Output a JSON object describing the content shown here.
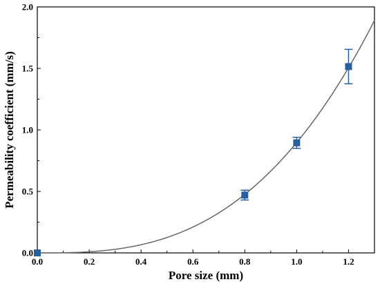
{
  "chart_data": {
    "type": "scatter",
    "title": "",
    "xlabel": "Pore size (mm)",
    "ylabel": "Permeability coefficient (mm/s)",
    "xlim": [
      0.0,
      1.3
    ],
    "ylim": [
      0.0,
      2.0
    ],
    "xticks": [
      0.0,
      0.2,
      0.4,
      0.6,
      0.8,
      1.0,
      1.2
    ],
    "yticks": [
      0.0,
      0.5,
      1.0,
      1.5,
      2.0
    ],
    "xtick_labels": [
      "0.0",
      "0.2",
      "0.4",
      "0.6",
      "0.8",
      "1.0",
      "1.2"
    ],
    "ytick_labels": [
      "0.0",
      "0.5",
      "1.0",
      "1.5",
      "2.0"
    ],
    "grid": false,
    "legend": "none",
    "series": [
      {
        "marker": "square",
        "color": "#2a5f9e",
        "x": [
          0.0,
          0.8,
          1.0,
          1.2
        ],
        "y": [
          0.0,
          0.47,
          0.895,
          1.515
        ],
        "error_low": [
          0.0,
          0.04,
          0.045,
          0.14
        ],
        "error_high": [
          0.0,
          0.04,
          0.045,
          0.14
        ]
      }
    ],
    "fit_line": {
      "style": "solid",
      "color": "#666666",
      "form": "power",
      "coefficient": 0.897,
      "exponent": 2.84
    }
  }
}
